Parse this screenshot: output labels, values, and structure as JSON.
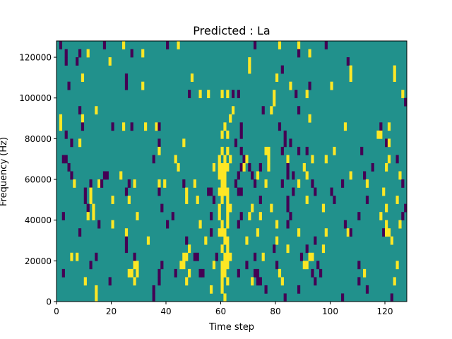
{
  "chart_data": {
    "type": "heatmap",
    "title": "Predicted : La",
    "xlabel": "Time step",
    "ylabel": "Frequency (Hz)",
    "xlim": [
      0,
      128
    ],
    "ylim": [
      0,
      128000
    ],
    "n_cols": 128,
    "n_rows": 32,
    "row_height_hz": 4000,
    "background_value": 0,
    "colormap": {
      "-1": "#440154",
      "0": "#21918c",
      "1": "#fde725"
    },
    "xticks": [
      0,
      20,
      40,
      60,
      80,
      100,
      120
    ],
    "xtick_labels": [
      "0",
      "20",
      "40",
      "60",
      "80",
      "100",
      "120"
    ],
    "yticks": [
      0,
      20000,
      40000,
      60000,
      80000,
      100000,
      120000
    ],
    "ytick_labels": [
      "0",
      "20000",
      "40000",
      "60000",
      "80000",
      "100000",
      "120000"
    ],
    "cells_note": "sparse list [time_step, row_index, value]; all other cells = 0",
    "cells": [
      [
        1,
        31,
        -1
      ],
      [
        17,
        31,
        -1
      ],
      [
        24,
        31,
        1
      ],
      [
        40,
        31,
        -1
      ],
      [
        44,
        31,
        1
      ],
      [
        72,
        31,
        -1
      ],
      [
        81,
        31,
        1
      ],
      [
        88,
        31,
        1
      ],
      [
        98,
        31,
        -1
      ],
      [
        3,
        30,
        -1
      ],
      [
        8,
        30,
        -1
      ],
      [
        11,
        30,
        1
      ],
      [
        27,
        30,
        -1
      ],
      [
        31,
        30,
        1
      ],
      [
        88,
        30,
        -1
      ],
      [
        92,
        30,
        1
      ],
      [
        3,
        29,
        -1
      ],
      [
        7,
        29,
        -1
      ],
      [
        19,
        29,
        1
      ],
      [
        70,
        29,
        1
      ],
      [
        106,
        29,
        -1
      ],
      [
        70,
        28,
        1
      ],
      [
        82,
        28,
        -1
      ],
      [
        107,
        28,
        1
      ],
      [
        123,
        28,
        1
      ],
      [
        9,
        27,
        1
      ],
      [
        25,
        27,
        -1
      ],
      [
        49,
        27,
        1
      ],
      [
        80,
        27,
        1
      ],
      [
        107,
        27,
        1
      ],
      [
        123,
        27,
        1
      ],
      [
        4,
        26,
        -1
      ],
      [
        25,
        26,
        -1
      ],
      [
        31,
        26,
        1
      ],
      [
        85,
        26,
        1
      ],
      [
        92,
        26,
        -1
      ],
      [
        100,
        26,
        1
      ],
      [
        48,
        25,
        -1
      ],
      [
        52,
        25,
        1
      ],
      [
        55,
        25,
        1
      ],
      [
        60,
        25,
        1
      ],
      [
        62,
        25,
        1
      ],
      [
        64,
        25,
        -1
      ],
      [
        66,
        25,
        -1
      ],
      [
        79,
        25,
        1
      ],
      [
        87,
        25,
        -1
      ],
      [
        91,
        25,
        1
      ],
      [
        126,
        25,
        1
      ],
      [
        79,
        24,
        1
      ],
      [
        127,
        24,
        -1
      ],
      [
        8,
        23,
        -1
      ],
      [
        14,
        23,
        1
      ],
      [
        64,
        23,
        1
      ],
      [
        75,
        23,
        -1
      ],
      [
        78,
        23,
        1
      ],
      [
        88,
        23,
        -1
      ],
      [
        1,
        22,
        1
      ],
      [
        9,
        22,
        1
      ],
      [
        63,
        22,
        1
      ],
      [
        92,
        22,
        1
      ],
      [
        1,
        21,
        1
      ],
      [
        9,
        21,
        -1
      ],
      [
        20,
        21,
        -1
      ],
      [
        24,
        21,
        1
      ],
      [
        27,
        21,
        -1
      ],
      [
        32,
        21,
        1
      ],
      [
        36,
        21,
        1
      ],
      [
        37,
        21,
        -1
      ],
      [
        61,
        21,
        1
      ],
      [
        67,
        21,
        -1
      ],
      [
        81,
        21,
        -1
      ],
      [
        105,
        21,
        1
      ],
      [
        118,
        21,
        -1
      ],
      [
        121,
        21,
        1
      ],
      [
        3,
        20,
        -1
      ],
      [
        60,
        20,
        1
      ],
      [
        62,
        20,
        1
      ],
      [
        67,
        20,
        -1
      ],
      [
        83,
        20,
        -1
      ],
      [
        117,
        20,
        1
      ],
      [
        118,
        20,
        1
      ],
      [
        5,
        19,
        -1
      ],
      [
        8,
        19,
        1
      ],
      [
        37,
        19,
        -1
      ],
      [
        46,
        19,
        1
      ],
      [
        65,
        19,
        -1
      ],
      [
        83,
        19,
        -1
      ],
      [
        85,
        19,
        -1
      ],
      [
        120,
        19,
        -1
      ],
      [
        121,
        19,
        1
      ],
      [
        37,
        18,
        1
      ],
      [
        60,
        18,
        1
      ],
      [
        62,
        18,
        1
      ],
      [
        67,
        18,
        -1
      ],
      [
        76,
        18,
        1
      ],
      [
        77,
        18,
        1
      ],
      [
        82,
        18,
        -1
      ],
      [
        88,
        18,
        -1
      ],
      [
        91,
        18,
        -1
      ],
      [
        101,
        18,
        1
      ],
      [
        111,
        18,
        -1
      ],
      [
        2,
        17,
        -1
      ],
      [
        3,
        17,
        -1
      ],
      [
        35,
        17,
        -1
      ],
      [
        43,
        17,
        1
      ],
      [
        59,
        17,
        1
      ],
      [
        61,
        17,
        1
      ],
      [
        63,
        17,
        1
      ],
      [
        68,
        17,
        -1
      ],
      [
        69,
        17,
        1
      ],
      [
        77,
        17,
        1
      ],
      [
        84,
        17,
        1
      ],
      [
        93,
        17,
        1
      ],
      [
        98,
        17,
        1
      ],
      [
        121,
        17,
        1
      ],
      [
        124,
        17,
        -1
      ],
      [
        4,
        16,
        -1
      ],
      [
        44,
        16,
        1
      ],
      [
        57,
        16,
        1
      ],
      [
        59,
        16,
        1
      ],
      [
        60,
        16,
        1
      ],
      [
        61,
        16,
        1
      ],
      [
        62,
        16,
        1
      ],
      [
        67,
        16,
        -1
      ],
      [
        68,
        16,
        1
      ],
      [
        70,
        16,
        -1
      ],
      [
        74,
        16,
        -1
      ],
      [
        77,
        16,
        1
      ],
      [
        84,
        16,
        -1
      ],
      [
        90,
        16,
        1
      ],
      [
        115,
        16,
        -1
      ],
      [
        120,
        16,
        1
      ],
      [
        5,
        15,
        -1
      ],
      [
        17,
        15,
        -1
      ],
      [
        18,
        15,
        -1
      ],
      [
        23,
        15,
        1
      ],
      [
        59,
        15,
        1
      ],
      [
        60,
        15,
        1
      ],
      [
        61,
        15,
        1
      ],
      [
        66,
        15,
        -1
      ],
      [
        71,
        15,
        -1
      ],
      [
        73,
        15,
        1
      ],
      [
        84,
        15,
        -1
      ],
      [
        86,
        15,
        -1
      ],
      [
        91,
        15,
        1
      ],
      [
        107,
        15,
        1
      ],
      [
        112,
        15,
        -1
      ],
      [
        125,
        15,
        1
      ],
      [
        6,
        14,
        1
      ],
      [
        12,
        14,
        -1
      ],
      [
        15,
        14,
        1
      ],
      [
        16,
        14,
        -1
      ],
      [
        26,
        14,
        -1
      ],
      [
        28,
        14,
        1
      ],
      [
        37,
        14,
        1
      ],
      [
        39,
        14,
        1
      ],
      [
        46,
        14,
        -1
      ],
      [
        50,
        14,
        1
      ],
      [
        60,
        14,
        1
      ],
      [
        61,
        14,
        1
      ],
      [
        65,
        14,
        -1
      ],
      [
        72,
        14,
        -1
      ],
      [
        76,
        14,
        1
      ],
      [
        82,
        14,
        -1
      ],
      [
        88,
        14,
        1
      ],
      [
        93,
        14,
        -1
      ],
      [
        104,
        14,
        -1
      ],
      [
        113,
        14,
        1
      ],
      [
        126,
        14,
        -1
      ],
      [
        10,
        13,
        -1
      ],
      [
        12,
        13,
        1
      ],
      [
        25,
        13,
        -1
      ],
      [
        37,
        13,
        -1
      ],
      [
        47,
        13,
        1
      ],
      [
        55,
        13,
        -1
      ],
      [
        56,
        13,
        -1
      ],
      [
        59,
        13,
        1
      ],
      [
        60,
        13,
        1
      ],
      [
        61,
        13,
        1
      ],
      [
        62,
        13,
        1
      ],
      [
        66,
        13,
        -1
      ],
      [
        67,
        13,
        -1
      ],
      [
        86,
        13,
        -1
      ],
      [
        94,
        13,
        -1
      ],
      [
        100,
        13,
        -1
      ],
      [
        119,
        13,
        1
      ],
      [
        10,
        12,
        -1
      ],
      [
        12,
        12,
        1
      ],
      [
        20,
        12,
        1
      ],
      [
        26,
        12,
        1
      ],
      [
        47,
        12,
        1
      ],
      [
        51,
        12,
        1
      ],
      [
        57,
        12,
        -1
      ],
      [
        60,
        12,
        1
      ],
      [
        62,
        12,
        1
      ],
      [
        74,
        12,
        -1
      ],
      [
        84,
        12,
        -1
      ],
      [
        91,
        12,
        1
      ],
      [
        101,
        12,
        -1
      ],
      [
        113,
        12,
        -1
      ],
      [
        124,
        12,
        1
      ],
      [
        11,
        11,
        -1
      ],
      [
        13,
        11,
        1
      ],
      [
        38,
        11,
        -1
      ],
      [
        59,
        11,
        1
      ],
      [
        62,
        11,
        1
      ],
      [
        63,
        11,
        1
      ],
      [
        71,
        11,
        1
      ],
      [
        78,
        11,
        1
      ],
      [
        84,
        11,
        -1
      ],
      [
        97,
        11,
        1
      ],
      [
        120,
        11,
        1
      ],
      [
        127,
        11,
        -1
      ],
      [
        2,
        10,
        -1
      ],
      [
        11,
        10,
        1
      ],
      [
        13,
        10,
        1
      ],
      [
        29,
        10,
        1
      ],
      [
        42,
        10,
        -1
      ],
      [
        56,
        10,
        -1
      ],
      [
        59,
        10,
        1
      ],
      [
        62,
        10,
        1
      ],
      [
        67,
        10,
        -1
      ],
      [
        70,
        10,
        1
      ],
      [
        74,
        10,
        1
      ],
      [
        85,
        10,
        -1
      ],
      [
        110,
        10,
        -1
      ],
      [
        118,
        10,
        1
      ],
      [
        126,
        10,
        -1
      ],
      [
        15,
        9,
        -1
      ],
      [
        20,
        9,
        1
      ],
      [
        40,
        9,
        -1
      ],
      [
        52,
        9,
        1
      ],
      [
        60,
        9,
        1
      ],
      [
        62,
        9,
        1
      ],
      [
        66,
        9,
        -1
      ],
      [
        80,
        9,
        1
      ],
      [
        84,
        9,
        -1
      ],
      [
        105,
        9,
        -1
      ],
      [
        120,
        9,
        1
      ],
      [
        125,
        9,
        1
      ],
      [
        8,
        8,
        -1
      ],
      [
        25,
        8,
        1
      ],
      [
        56,
        8,
        -1
      ],
      [
        59,
        8,
        1
      ],
      [
        60,
        8,
        1
      ],
      [
        61,
        8,
        1
      ],
      [
        73,
        8,
        1
      ],
      [
        88,
        8,
        1
      ],
      [
        98,
        8,
        1
      ],
      [
        106,
        8,
        1
      ],
      [
        107,
        8,
        -1
      ],
      [
        119,
        8,
        -1
      ],
      [
        120,
        8,
        1
      ],
      [
        121,
        8,
        1
      ],
      [
        25,
        7,
        -1
      ],
      [
        33,
        7,
        1
      ],
      [
        47,
        7,
        -1
      ],
      [
        54,
        7,
        1
      ],
      [
        61,
        7,
        1
      ],
      [
        62,
        7,
        1
      ],
      [
        69,
        7,
        1
      ],
      [
        80,
        7,
        1
      ],
      [
        94,
        7,
        -1
      ],
      [
        122,
        7,
        1
      ],
      [
        25,
        6,
        -1
      ],
      [
        48,
        6,
        1
      ],
      [
        60,
        6,
        1
      ],
      [
        62,
        6,
        1
      ],
      [
        79,
        6,
        -1
      ],
      [
        84,
        6,
        1
      ],
      [
        91,
        6,
        -1
      ],
      [
        97,
        6,
        1
      ],
      [
        5,
        5,
        1
      ],
      [
        7,
        5,
        1
      ],
      [
        14,
        5,
        -1
      ],
      [
        28,
        5,
        -1
      ],
      [
        46,
        5,
        1
      ],
      [
        47,
        5,
        1
      ],
      [
        50,
        5,
        -1
      ],
      [
        51,
        5,
        -1
      ],
      [
        58,
        5,
        -1
      ],
      [
        61,
        5,
        1
      ],
      [
        62,
        5,
        1
      ],
      [
        63,
        5,
        1
      ],
      [
        72,
        5,
        -1
      ],
      [
        75,
        5,
        1
      ],
      [
        89,
        5,
        -1
      ],
      [
        92,
        5,
        1
      ],
      [
        93,
        5,
        1
      ],
      [
        12,
        4,
        -1
      ],
      [
        28,
        4,
        1
      ],
      [
        29,
        4,
        1
      ],
      [
        38,
        4,
        -1
      ],
      [
        45,
        4,
        1
      ],
      [
        46,
        4,
        1
      ],
      [
        57,
        4,
        1
      ],
      [
        60,
        4,
        1
      ],
      [
        61,
        4,
        1
      ],
      [
        62,
        4,
        1
      ],
      [
        69,
        4,
        -1
      ],
      [
        80,
        4,
        -1
      ],
      [
        90,
        4,
        1
      ],
      [
        91,
        4,
        1
      ],
      [
        95,
        4,
        -1
      ],
      [
        110,
        4,
        -1
      ],
      [
        124,
        4,
        1
      ],
      [
        2,
        3,
        -1
      ],
      [
        26,
        3,
        1
      ],
      [
        27,
        3,
        1
      ],
      [
        29,
        3,
        1
      ],
      [
        37,
        3,
        -1
      ],
      [
        43,
        3,
        -1
      ],
      [
        48,
        3,
        1
      ],
      [
        52,
        3,
        -1
      ],
      [
        53,
        3,
        -1
      ],
      [
        60,
        3,
        1
      ],
      [
        61,
        3,
        1
      ],
      [
        66,
        3,
        -1
      ],
      [
        72,
        3,
        -1
      ],
      [
        73,
        3,
        -1
      ],
      [
        81,
        3,
        1
      ],
      [
        93,
        3,
        -1
      ],
      [
        96,
        3,
        -1
      ],
      [
        112,
        3,
        1
      ],
      [
        10,
        2,
        1
      ],
      [
        19,
        2,
        -1
      ],
      [
        28,
        2,
        1
      ],
      [
        37,
        2,
        -1
      ],
      [
        47,
        2,
        1
      ],
      [
        60,
        2,
        1
      ],
      [
        62,
        2,
        1
      ],
      [
        71,
        2,
        1
      ],
      [
        73,
        2,
        -1
      ],
      [
        74,
        2,
        -1
      ],
      [
        82,
        2,
        1
      ],
      [
        94,
        2,
        -1
      ],
      [
        110,
        2,
        -1
      ],
      [
        123,
        2,
        1
      ],
      [
        14,
        1,
        1
      ],
      [
        35,
        1,
        -1
      ],
      [
        56,
        1,
        1
      ],
      [
        60,
        1,
        1
      ],
      [
        76,
        1,
        -1
      ],
      [
        88,
        1,
        -1
      ],
      [
        113,
        1,
        -1
      ],
      [
        14,
        0,
        1
      ],
      [
        35,
        0,
        -1
      ],
      [
        61,
        0,
        1
      ],
      [
        83,
        0,
        -1
      ],
      [
        104,
        0,
        -1
      ],
      [
        122,
        0,
        -1
      ]
    ]
  }
}
